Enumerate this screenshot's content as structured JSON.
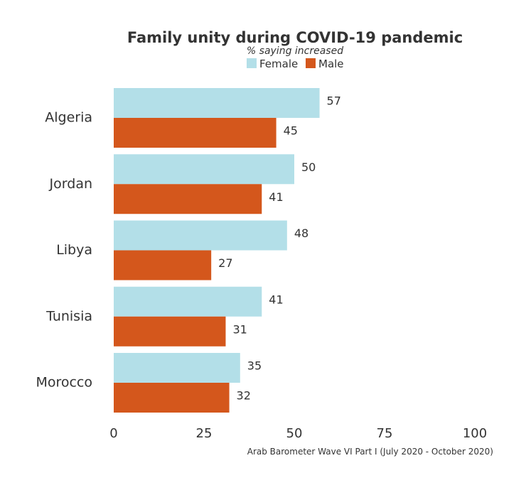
{
  "chart_data": {
    "type": "bar",
    "orientation": "horizontal",
    "title": "Family unity during COVID-19 pandemic",
    "subtitle": "% saying increased",
    "categories": [
      "Algeria",
      "Jordan",
      "Libya",
      "Tunisia",
      "Morocco"
    ],
    "series": [
      {
        "name": "Female",
        "color": "#b3dfe8",
        "values": [
          57,
          50,
          48,
          41,
          35
        ]
      },
      {
        "name": "Male",
        "color": "#d4571c",
        "values": [
          45,
          41,
          27,
          31,
          32
        ]
      }
    ],
    "xlim": [
      0,
      100
    ],
    "xticks": [
      0,
      25,
      50,
      75,
      100
    ],
    "grid": false,
    "legend_position": "top",
    "caption": "Arab Barometer Wave VI Part I (July 2020 - October 2020)"
  }
}
